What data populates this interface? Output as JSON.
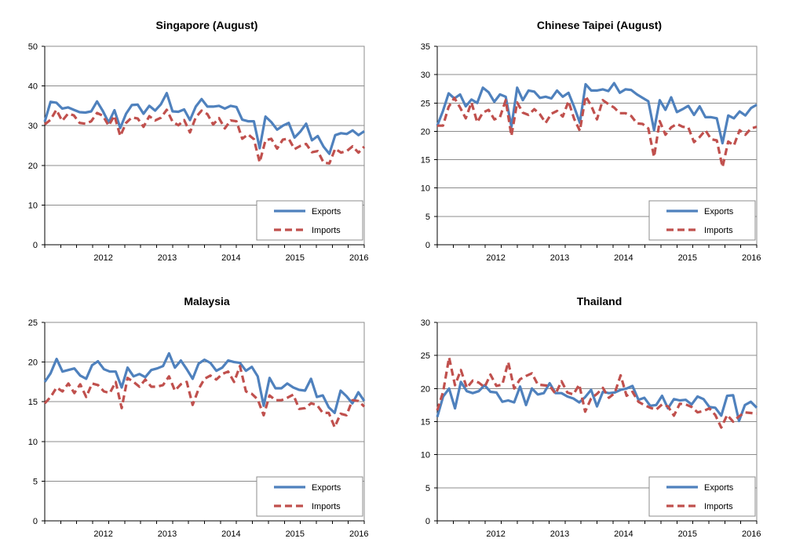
{
  "chart_data": [
    {
      "type": "line",
      "title": "Singapore (August)",
      "ylim": [
        0,
        50
      ],
      "yticks": [
        0,
        10,
        20,
        30,
        40,
        50
      ],
      "x_start": "2011-08",
      "x_end": "2016-08",
      "x_tick_labels": [
        "2012",
        "2013",
        "2014",
        "2015",
        "2016"
      ],
      "grid": true,
      "legend_position": "bottom-right",
      "series": [
        {
          "name": "Exports",
          "color": "#4F81BD",
          "style": "solid",
          "values": [
            31,
            36,
            35.8,
            34.3,
            34.6,
            34,
            33.4,
            33.3,
            33.6,
            36.1,
            33.7,
            30.8,
            33.9,
            29.4,
            33,
            35.2,
            35.3,
            33,
            35,
            33.8,
            35.4,
            38.2,
            33.6,
            33.5,
            34.1,
            31.4,
            34.8,
            36.7,
            34.8,
            34.8,
            35,
            34.3,
            35,
            34.7,
            31.5,
            31.1,
            31.1,
            24.3,
            32.3,
            30.9,
            29,
            30,
            30.7,
            27,
            28.5,
            30.5,
            26.3,
            27.4,
            24.7,
            22.9,
            27.6,
            28.1,
            27.9,
            28.8,
            27.6,
            28.6
          ]
        },
        {
          "name": "Imports",
          "color": "#C0504D",
          "style": "dashed",
          "values": [
            30.3,
            31.5,
            34,
            31.2,
            33,
            32.6,
            30.7,
            30.5,
            31.1,
            33.2,
            32.5,
            30,
            32.5,
            27.4,
            30.7,
            32.1,
            31.8,
            29.7,
            32.4,
            31.3,
            32,
            34,
            31,
            30.1,
            31.4,
            28.3,
            32.1,
            33.8,
            32.9,
            30.3,
            31.9,
            29.3,
            31.3,
            31.1,
            26.7,
            27.8,
            26.6,
            20.8,
            26.3,
            26.7,
            24.2,
            26.5,
            26.7,
            24.1,
            24.9,
            25.4,
            23.3,
            23.6,
            20.7,
            20.5,
            24.2,
            23.2,
            23.6,
            24.8,
            23.2,
            24.7
          ]
        }
      ]
    },
    {
      "type": "line",
      "title": "Chinese Taipei (August)",
      "ylim": [
        0,
        35
      ],
      "yticks": [
        0,
        5,
        10,
        15,
        20,
        25,
        30,
        35
      ],
      "x_start": "2011-08",
      "x_end": "2016-08",
      "x_tick_labels": [
        "2012",
        "2013",
        "2014",
        "2015",
        "2016"
      ],
      "grid": true,
      "legend_position": "bottom-right",
      "series": [
        {
          "name": "Exports",
          "color": "#4F81BD",
          "style": "solid",
          "values": [
            21,
            23.6,
            26.7,
            25.8,
            26.5,
            24.4,
            25.6,
            25,
            27.7,
            26.9,
            25.2,
            26.5,
            26.1,
            20.8,
            27.7,
            25.5,
            27.2,
            27,
            25.9,
            26.1,
            25.8,
            27.2,
            26.1,
            26.8,
            24.3,
            21.5,
            28.3,
            27.2,
            27.2,
            27.4,
            27.1,
            28.5,
            26.8,
            27.4,
            27.3,
            26.5,
            25.9,
            25.3,
            20.2,
            25.5,
            23.8,
            26,
            23.4,
            23.9,
            24.5,
            22.9,
            24.4,
            22.5,
            22.5,
            22.3,
            17.9,
            22.8,
            22.3,
            23.5,
            22.8,
            24.1,
            24.7
          ]
        },
        {
          "name": "Imports",
          "color": "#C0504D",
          "style": "dashed",
          "values": [
            21,
            21,
            24.3,
            25.9,
            24.2,
            22.3,
            25.1,
            21.6,
            23.3,
            23.8,
            22.1,
            22.5,
            25.5,
            19.2,
            25.1,
            23.3,
            22.9,
            23.9,
            23,
            21.5,
            23.1,
            23.6,
            22.6,
            25.3,
            22.2,
            20.1,
            26.2,
            24.5,
            22.1,
            25.5,
            24.8,
            24.2,
            23.2,
            23.2,
            22.7,
            21.4,
            21.3,
            20.5,
            15.5,
            21.8,
            19.4,
            20.7,
            21.3,
            20.8,
            20.7,
            18.1,
            19,
            20.2,
            18.6,
            18.4,
            13.7,
            18.2,
            17.5,
            20.2,
            19.4,
            20.5,
            20.8
          ]
        }
      ]
    },
    {
      "type": "line",
      "title": "Malaysia",
      "ylim": [
        0,
        25
      ],
      "yticks": [
        0,
        5,
        10,
        15,
        20,
        25
      ],
      "x_start": "2011-08",
      "x_end": "2016-08",
      "x_tick_labels": [
        "2012",
        "2013",
        "2014",
        "2015",
        "2016"
      ],
      "grid": true,
      "legend_position": "bottom-right",
      "series": [
        {
          "name": "Exports",
          "color": "#4F81BD",
          "style": "solid",
          "values": [
            17.5,
            18.6,
            20.4,
            18.8,
            19,
            19.2,
            18.3,
            17.9,
            19.6,
            20.1,
            19.1,
            18.8,
            18.8,
            16.8,
            19.3,
            18.2,
            18.5,
            18.1,
            19,
            19.2,
            19.5,
            21.1,
            19.3,
            20.2,
            19.1,
            17.9,
            19.8,
            20.3,
            19.9,
            18.9,
            19.3,
            20.2,
            20,
            19.9,
            18.9,
            19.4,
            18.2,
            14.5,
            18,
            16.7,
            16.7,
            17.3,
            16.8,
            16.5,
            16.4,
            17.9,
            15.6,
            15.8,
            14.3,
            13.6,
            16.4,
            15.7,
            14.8,
            16.2,
            15.1
          ]
        },
        {
          "name": "Imports",
          "color": "#C0504D",
          "style": "dashed",
          "values": [
            14.8,
            15.6,
            16.8,
            16.3,
            17.3,
            16.1,
            17.2,
            15.6,
            17.3,
            17.1,
            16.3,
            16.1,
            17.5,
            14.2,
            18,
            17.5,
            16.9,
            17.8,
            16.9,
            16.9,
            17.1,
            18.2,
            16.4,
            17.2,
            17.5,
            14.6,
            16.6,
            17.9,
            18.3,
            17.8,
            18.5,
            18.8,
            17.5,
            19.5,
            16.3,
            16,
            15.3,
            13.3,
            15.8,
            15.2,
            15.2,
            15.5,
            15.9,
            14.1,
            14.2,
            14.8,
            14.6,
            13.6,
            13.6,
            11.8,
            13.5,
            13.3,
            15.2,
            15.1,
            14.4
          ]
        }
      ]
    },
    {
      "type": "line",
      "title": "Thailand",
      "ylim": [
        0,
        30
      ],
      "yticks": [
        0,
        5,
        10,
        15,
        20,
        25,
        30
      ],
      "x_start": "2011-08",
      "x_end": "2016-08",
      "x_tick_labels": [
        "2012",
        "2013",
        "2014",
        "2015",
        "2016"
      ],
      "grid": true,
      "legend_position": "bottom-right",
      "series": [
        {
          "name": "Exports",
          "color": "#4F81BD",
          "style": "solid",
          "values": [
            15.7,
            18.8,
            20,
            17,
            21,
            19.6,
            19.3,
            19.6,
            20.5,
            19.5,
            19.4,
            18,
            18.2,
            17.9,
            20.3,
            17.5,
            20,
            19.1,
            19.3,
            20.8,
            19.3,
            19.3,
            18.8,
            18.5,
            17.9,
            18.7,
            19.8,
            17.3,
            19.5,
            19.3,
            19.4,
            19.8,
            20,
            20.4,
            18.3,
            18.6,
            17.4,
            17.5,
            18.9,
            17,
            18.4,
            18.2,
            18.3,
            17.6,
            18.8,
            18.4,
            17.2,
            17.1,
            15.9,
            18.9,
            19,
            15.1,
            17.5,
            18,
            17.1
          ]
        },
        {
          "name": "Imports",
          "color": "#C0504D",
          "style": "dashed",
          "values": [
            16.7,
            19.5,
            24.7,
            20.5,
            22.8,
            20.1,
            21.2,
            20.9,
            20.2,
            22.1,
            20.4,
            20.6,
            24,
            20,
            21.4,
            21.9,
            22.3,
            20.6,
            20.5,
            20.4,
            19.2,
            21.1,
            19.4,
            19.1,
            20.6,
            16.5,
            18.5,
            19.2,
            20.1,
            18.6,
            19.3,
            22,
            18.9,
            19.5,
            18,
            17.5,
            17.1,
            16.8,
            17.6,
            17.3,
            15.9,
            17.7,
            17.6,
            17.2,
            16.4,
            16.6,
            17,
            16,
            14.1,
            16,
            15,
            15.8,
            16.4,
            16.3,
            16.2
          ]
        }
      ]
    }
  ]
}
